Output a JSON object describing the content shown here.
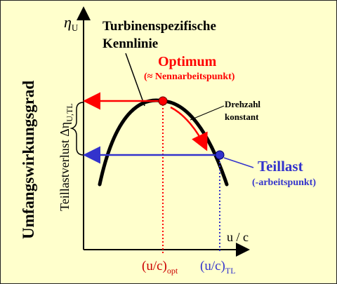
{
  "axes": {
    "y_label_main": "η",
    "y_label_sub": "U",
    "x_label": "u / c"
  },
  "title": {
    "line1": "Turbinenspezifische",
    "line2": "Kennlinie"
  },
  "left_axis_label": "Umfangswirkungsgrad",
  "loss_label": {
    "main": "Teillastverlust Δη",
    "sub": "U,TL"
  },
  "optimum": {
    "label": "Optimum",
    "sublabel": "(≈ Nennarbeitspunkt)"
  },
  "speed_note": {
    "line1": "Drehzahl",
    "line2": "konstant"
  },
  "teillast": {
    "label": "Teillast",
    "sublabel": "(-arbeitspunkt)"
  },
  "x_ticks": {
    "opt_main": "(u/c)",
    "opt_sub": "opt",
    "tl_main": "(u/c)",
    "tl_sub": "TL"
  },
  "colors": {
    "background": "#ffffcc",
    "curve": "#000000",
    "optimum": "#ff0000",
    "teillast": "#3333cc"
  }
}
